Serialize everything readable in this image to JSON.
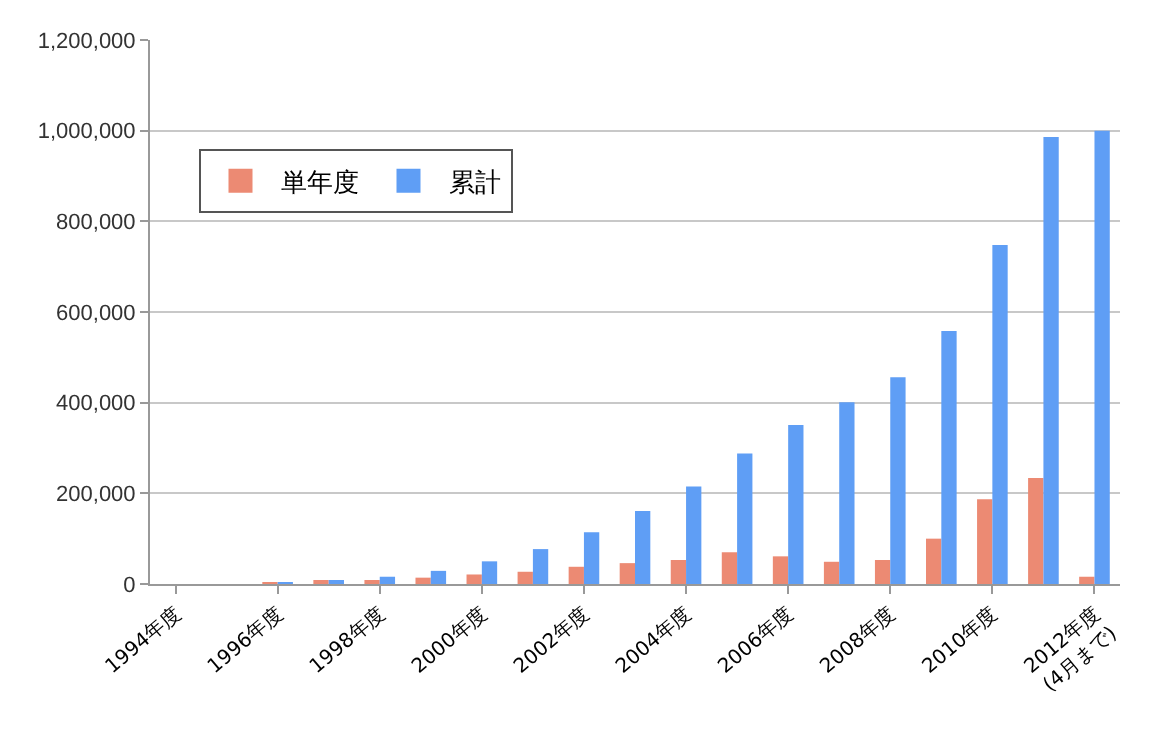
{
  "chart_data": {
    "type": "bar",
    "categories": [
      "1994年度",
      null,
      "1996年度",
      null,
      "1998年度",
      null,
      "2000年度",
      null,
      "2002年度",
      null,
      "2004年度",
      null,
      "2006年度",
      null,
      "2008年度",
      null,
      "2010年度",
      null,
      "2012年度\n(4月まで)"
    ],
    "series": [
      {
        "name": "単年度",
        "color": "#ec8a73",
        "values": [
          0,
          0,
          1000,
          5000,
          8000,
          14000,
          21000,
          27000,
          38000,
          46000,
          53000,
          70000,
          61000,
          49000,
          53000,
          100000,
          187000,
          234000,
          16000
        ]
      },
      {
        "name": "累計",
        "color": "#5f9ef5",
        "values": [
          0,
          0,
          2000,
          7000,
          16000,
          29000,
          50000,
          77000,
          114000,
          161000,
          215000,
          288000,
          351000,
          401000,
          456000,
          558000,
          748000,
          986000,
          1000000
        ]
      }
    ],
    "ylim": [
      0,
      1200000
    ],
    "yticks": [
      {
        "value": 0,
        "label": "0"
      },
      {
        "value": 200000,
        "label": "200,000"
      },
      {
        "value": 400000,
        "label": "400,000"
      },
      {
        "value": 600000,
        "label": "600,000"
      },
      {
        "value": 800000,
        "label": "800,000"
      },
      {
        "value": 1000000,
        "label": "1,000,000"
      },
      {
        "value": 1200000,
        "label": "1,200,000"
      }
    ],
    "grid": "y",
    "legend": "top left"
  }
}
